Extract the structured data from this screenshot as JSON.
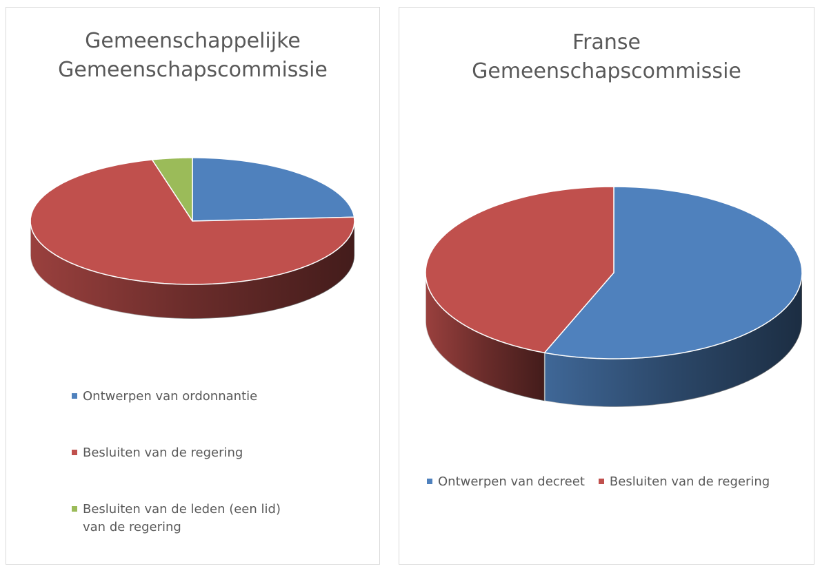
{
  "chart_data": [
    {
      "type": "pie",
      "title": "Gemeenschappelijke Gemeenschapscommissie",
      "categories": [
        "Ontwerpen van ordonnantie",
        "Besluiten van de regering",
        "Besluiten van de leden (een lid) van de regering"
      ],
      "values": [
        24,
        72,
        4
      ],
      "colors": [
        "#4f81bd",
        "#c0504d",
        "#9bbb59"
      ],
      "legend": "bottom"
    },
    {
      "type": "pie",
      "title": "Franse Gemeenschapscommissie",
      "categories": [
        "Ontwerpen van decreet",
        "Besluiten van de regering"
      ],
      "values": [
        56,
        44
      ],
      "colors": [
        "#4f81bd",
        "#c0504d"
      ],
      "legend": "bottom"
    }
  ]
}
